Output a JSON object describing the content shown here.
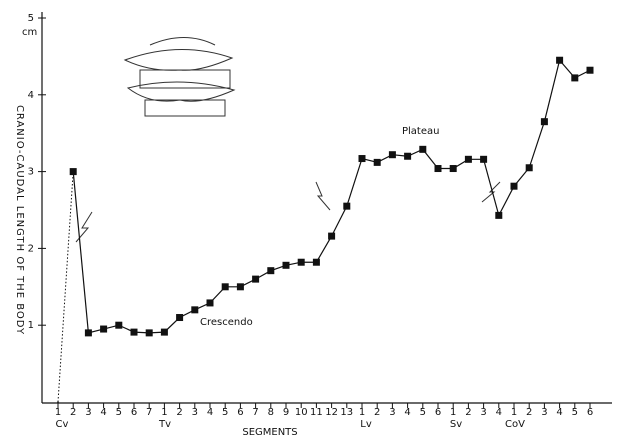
{
  "chart_data": {
    "type": "line",
    "y_label": "CRANIO-CAUDAL LENGTH OF THE BODY",
    "y_unit": "cm",
    "x_label": "SEGMENTS",
    "categories": [
      "1",
      "2",
      "3",
      "4",
      "5",
      "6",
      "7",
      "1",
      "2",
      "3",
      "4",
      "5",
      "6",
      "7",
      "8",
      "9",
      "10",
      "11",
      "12",
      "13",
      "1",
      "2",
      "3",
      "4",
      "5",
      "6",
      "1",
      "2",
      "3",
      "4",
      "1",
      "2",
      "3",
      "4",
      "5",
      "6"
    ],
    "groups": [
      "Cv",
      "Tv",
      "Lv",
      "Sv",
      "CoV"
    ],
    "values": [
      0,
      3.0,
      0.9,
      0.95,
      1.0,
      0.91,
      0.9,
      0.91,
      1.1,
      1.2,
      1.29,
      1.5,
      1.5,
      1.6,
      1.71,
      1.78,
      1.82,
      1.82,
      2.16,
      2.55,
      3.17,
      3.12,
      3.22,
      3.2,
      3.29,
      3.04,
      3.04,
      3.16,
      3.16,
      2.43,
      2.81,
      3.05,
      3.65,
      4.45,
      4.22,
      4.32
    ],
    "color": "#111111",
    "ylim": [
      0,
      5
    ],
    "yticks": [
      1,
      2,
      3,
      4,
      5
    ],
    "annotations": [
      "Crescendo",
      "Plateau"
    ]
  }
}
